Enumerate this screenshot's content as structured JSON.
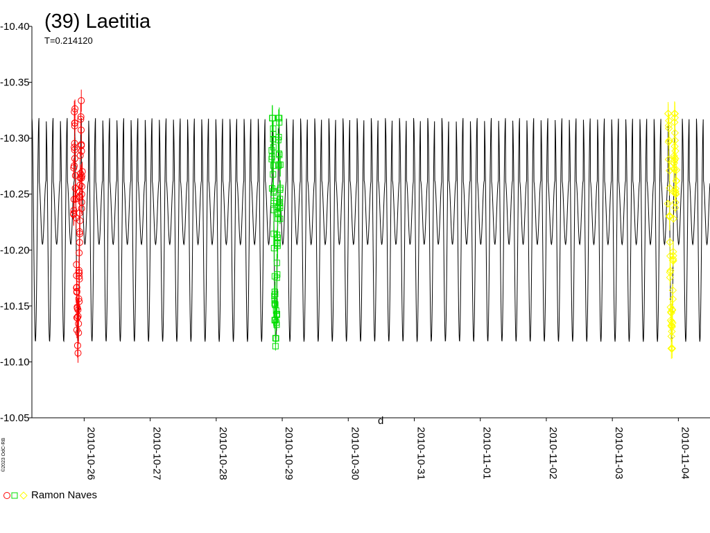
{
  "chart_data": {
    "type": "scatter",
    "title": "(39) Laetitia",
    "subtitle": "T=0.214120",
    "ylim": [
      -10.4,
      -10.05
    ],
    "y_inverted": true,
    "yticks": [
      "-10.40",
      "-10.35",
      "-10.30",
      "-10.25",
      "-10.20",
      "-10.15",
      "-10.10",
      "-10.05"
    ],
    "xlim": [
      "2010-10-25 05:00",
      "2010-11-04 11:30"
    ],
    "xticks": [
      "2010-10-26",
      "2010-10-27",
      "2010-10-28",
      "2010-10-29",
      "2010-10-30",
      "2010-10-31",
      "2010-11-01",
      "2010-11-02",
      "2010-11-03",
      "2010-11-04"
    ],
    "xlabel": "d",
    "model_curve": {
      "period_days": 0.21412,
      "min_mag": -10.318,
      "max_mag": -10.118,
      "secondary_peak_mag": -10.262,
      "secondary_trough_mag": -10.205,
      "color": "#000000"
    },
    "series": [
      {
        "name": "Ramon Naves",
        "color": "#ff0000",
        "marker": "circle",
        "x_range": [
          "2010-10-25 19:30",
          "2010-10-26 00:00"
        ],
        "y_range": [
          -10.348,
          -10.104
        ]
      },
      {
        "name": "Ramon Naves",
        "color": "#00dd00",
        "marker": "square",
        "x_range": [
          "2010-10-28 19:30",
          "2010-10-29 00:00"
        ],
        "y_range": [
          -10.318,
          -10.114
        ]
      },
      {
        "name": "Ramon Naves",
        "color": "#ffff00",
        "marker": "diamond",
        "x_range": [
          "2010-11-03 19:30",
          "2010-11-04 00:00"
        ],
        "y_range": [
          -10.322,
          -10.112
        ]
      }
    ],
    "legend": {
      "label": "Ramon Naves",
      "position": "bottom-left"
    },
    "copyright": "©2023 OdC-RB"
  }
}
